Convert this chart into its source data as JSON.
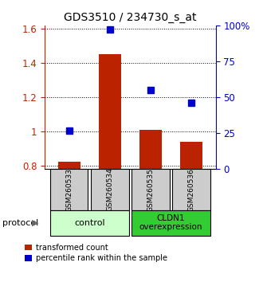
{
  "title": "GDS3510 / 234730_s_at",
  "samples": [
    "GSM260533",
    "GSM260534",
    "GSM260535",
    "GSM260536"
  ],
  "red_bars": [
    0.822,
    1.453,
    1.01,
    0.94
  ],
  "blue_dots_pct": [
    27,
    97,
    55,
    46
  ],
  "ylim_left": [
    0.78,
    1.62
  ],
  "ylim_right": [
    0,
    100
  ],
  "yticks_left": [
    0.8,
    1.0,
    1.2,
    1.4,
    1.6
  ],
  "yticks_right": [
    0,
    25,
    50,
    75,
    100
  ],
  "ytick_labels_right": [
    "0",
    "25",
    "50",
    "75",
    "100%"
  ],
  "ytick_labels_left": [
    "0.8",
    "1",
    "1.2",
    "1.4",
    "1.6"
  ],
  "bar_color": "#bb2200",
  "dot_color": "#0000cc",
  "group1_label": "control",
  "group2_label": "CLDN1\noverexpression",
  "group1_color": "#ccffcc",
  "group2_color": "#33cc33",
  "sample_box_color": "#cccccc",
  "legend_red_label": "transformed count",
  "legend_blue_label": "percentile rank within the sample",
  "protocol_label": "protocol"
}
